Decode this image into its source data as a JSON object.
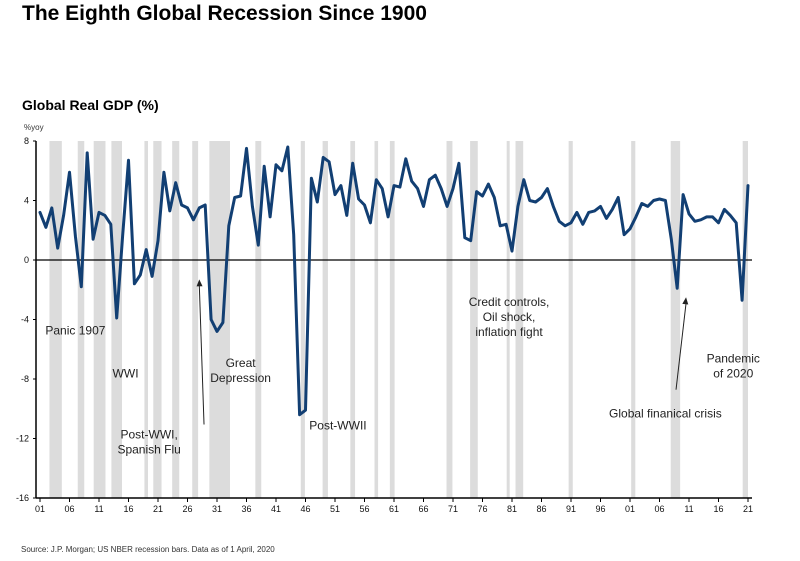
{
  "page": {
    "title": "The Eighth Global Recession Since 1900",
    "source": "Source: J.P. Morgan; US NBER recession bars. Data as of 1 April, 2020"
  },
  "chart_data": {
    "type": "line",
    "title": "Global Real GDP (%)",
    "ylabel": "%yoy",
    "xlabel": "",
    "ylim": [
      -16,
      8
    ],
    "xlim": [
      1901,
      2021
    ],
    "yticks": [
      8,
      4,
      0,
      -4,
      -8,
      -12,
      -16
    ],
    "ytick_labels": [
      "8",
      "4",
      "0",
      "-4",
      "-8",
      "-12",
      "-16"
    ],
    "xticks": [
      1901,
      1906,
      1911,
      1916,
      1921,
      1926,
      1931,
      1936,
      1941,
      1946,
      1951,
      1956,
      1961,
      1966,
      1971,
      1976,
      1981,
      1986,
      1991,
      1996,
      2001,
      2006,
      2011,
      2016,
      2021
    ],
    "xtick_labels": [
      "01",
      "06",
      "11",
      "16",
      "21",
      "26",
      "31",
      "36",
      "41",
      "46",
      "51",
      "56",
      "61",
      "66",
      "71",
      "76",
      "81",
      "86",
      "91",
      "96",
      "01",
      "06",
      "11",
      "16",
      "21"
    ],
    "grid": false,
    "zero_line": true,
    "series": [
      {
        "name": "Global Real GDP",
        "color": "#123f73",
        "x": [
          1901,
          1902,
          1903,
          1904,
          1905,
          1906,
          1907,
          1908,
          1909,
          1910,
          1911,
          1912,
          1913,
          1914,
          1915,
          1916,
          1917,
          1918,
          1919,
          1920,
          1921,
          1922,
          1923,
          1924,
          1925,
          1926,
          1927,
          1928,
          1929,
          1930,
          1931,
          1932,
          1933,
          1934,
          1935,
          1936,
          1937,
          1938,
          1939,
          1940,
          1941,
          1942,
          1943,
          1944,
          1945,
          1946,
          1947,
          1948,
          1949,
          1950,
          1951,
          1952,
          1953,
          1954,
          1955,
          1956,
          1957,
          1958,
          1959,
          1960,
          1961,
          1962,
          1963,
          1964,
          1965,
          1966,
          1967,
          1968,
          1969,
          1970,
          1971,
          1972,
          1973,
          1974,
          1975,
          1976,
          1977,
          1978,
          1979,
          1980,
          1981,
          1982,
          1983,
          1984,
          1985,
          1986,
          1987,
          1988,
          1989,
          1990,
          1991,
          1992,
          1993,
          1994,
          1995,
          1996,
          1997,
          1998,
          1999,
          2000,
          2001,
          2002,
          2003,
          2004,
          2005,
          2006,
          2007,
          2008,
          2009,
          2010,
          2011,
          2012,
          2013,
          2014,
          2015,
          2016,
          2017,
          2018,
          2019,
          2020,
          2021
        ],
        "values": [
          3.2,
          2.2,
          3.5,
          0.8,
          3.0,
          5.9,
          1.6,
          -1.8,
          7.2,
          1.4,
          3.2,
          3.0,
          2.4,
          -3.9,
          1.6,
          6.7,
          -1.6,
          -1.0,
          0.7,
          -1.1,
          1.3,
          5.9,
          3.3,
          5.2,
          3.7,
          3.5,
          2.7,
          3.5,
          3.7,
          -4.0,
          -4.8,
          -4.2,
          2.3,
          4.2,
          4.3,
          7.5,
          3.6,
          1.0,
          6.3,
          2.9,
          6.4,
          6.0,
          7.6,
          1.7,
          -10.4,
          -10.1,
          5.5,
          3.9,
          6.9,
          6.6,
          4.4,
          5.0,
          3.0,
          6.5,
          4.1,
          3.7,
          2.5,
          5.4,
          4.8,
          2.9,
          5.0,
          4.9,
          6.8,
          5.3,
          4.8,
          3.6,
          5.4,
          5.7,
          4.8,
          3.6,
          4.8,
          6.5,
          1.5,
          1.3,
          4.6,
          4.3,
          5.1,
          4.2,
          2.3,
          2.4,
          0.6,
          3.6,
          5.4,
          4.0,
          3.9,
          4.2,
          4.8,
          3.6,
          2.6,
          2.3,
          2.5,
          3.2,
          2.4,
          3.2,
          3.3,
          3.6,
          2.8,
          3.4,
          4.2,
          1.7,
          2.1,
          2.9,
          3.8,
          3.6,
          4.0,
          4.1,
          4.0,
          1.4,
          -1.9,
          4.4,
          3.1,
          2.6,
          2.7,
          2.9,
          2.9,
          2.5,
          3.4,
          3.0,
          2.5,
          -2.7,
          5.0
        ]
      }
    ],
    "recession_bars": [
      [
        1902.6,
        1904.7
      ],
      [
        1907.4,
        1908.5
      ],
      [
        1910.1,
        1912.1
      ],
      [
        1913.1,
        1914.9
      ],
      [
        1918.7,
        1919.3
      ],
      [
        1920.2,
        1921.6
      ],
      [
        1923.4,
        1924.6
      ],
      [
        1926.8,
        1927.8
      ],
      [
        1929.7,
        1933.2
      ],
      [
        1937.5,
        1938.5
      ],
      [
        1945.2,
        1945.9
      ],
      [
        1948.9,
        1949.8
      ],
      [
        1953.6,
        1954.4
      ],
      [
        1957.7,
        1958.3
      ],
      [
        1960.3,
        1961.1
      ],
      [
        1969.9,
        1970.9
      ],
      [
        1973.9,
        1975.2
      ],
      [
        1980.1,
        1980.5
      ],
      [
        1981.6,
        1982.9
      ],
      [
        1990.6,
        1991.3
      ],
      [
        2001.2,
        2001.9
      ],
      [
        2007.9,
        2009.5
      ],
      [
        2020.1,
        2021.0
      ]
    ],
    "annotations": [
      {
        "text": "Panic 1907",
        "lines": [
          "Panic 1907"
        ],
        "x": 1907,
        "y": -5.0
      },
      {
        "text": "WWI",
        "lines": [
          "WWI"
        ],
        "x": 1915.5,
        "y": -7.9
      },
      {
        "text": "Post-WWI, Spanish Flu",
        "lines": [
          "Post-WWI,",
          "Spanish Flu"
        ],
        "x": 1919.5,
        "y": -12.0,
        "arrow_to": [
          1928,
          -1.3
        ]
      },
      {
        "text": "Great Depression",
        "lines": [
          "Great",
          "Depression"
        ],
        "x": 1935,
        "y": -7.2
      },
      {
        "text": "Post-WWII",
        "lines": [
          "Post-WWII"
        ],
        "x": 1951.5,
        "y": -11.4
      },
      {
        "text": "Credit controls, Oil shock, inflation fight",
        "lines": [
          "Credit controls,",
          "Oil shock,",
          "inflation fight"
        ],
        "x": 1980.5,
        "y": -3.1
      },
      {
        "text": "Global finanical crisis",
        "lines": [
          "Global finanical crisis"
        ],
        "x": 2007,
        "y": -10.6,
        "arrow_to": [
          2010.5,
          -2.5
        ]
      },
      {
        "text": "Pandemic of 2020",
        "lines": [
          "Pandemic",
          "of 2020"
        ],
        "x": 2018.5,
        "y": -6.9
      }
    ]
  }
}
